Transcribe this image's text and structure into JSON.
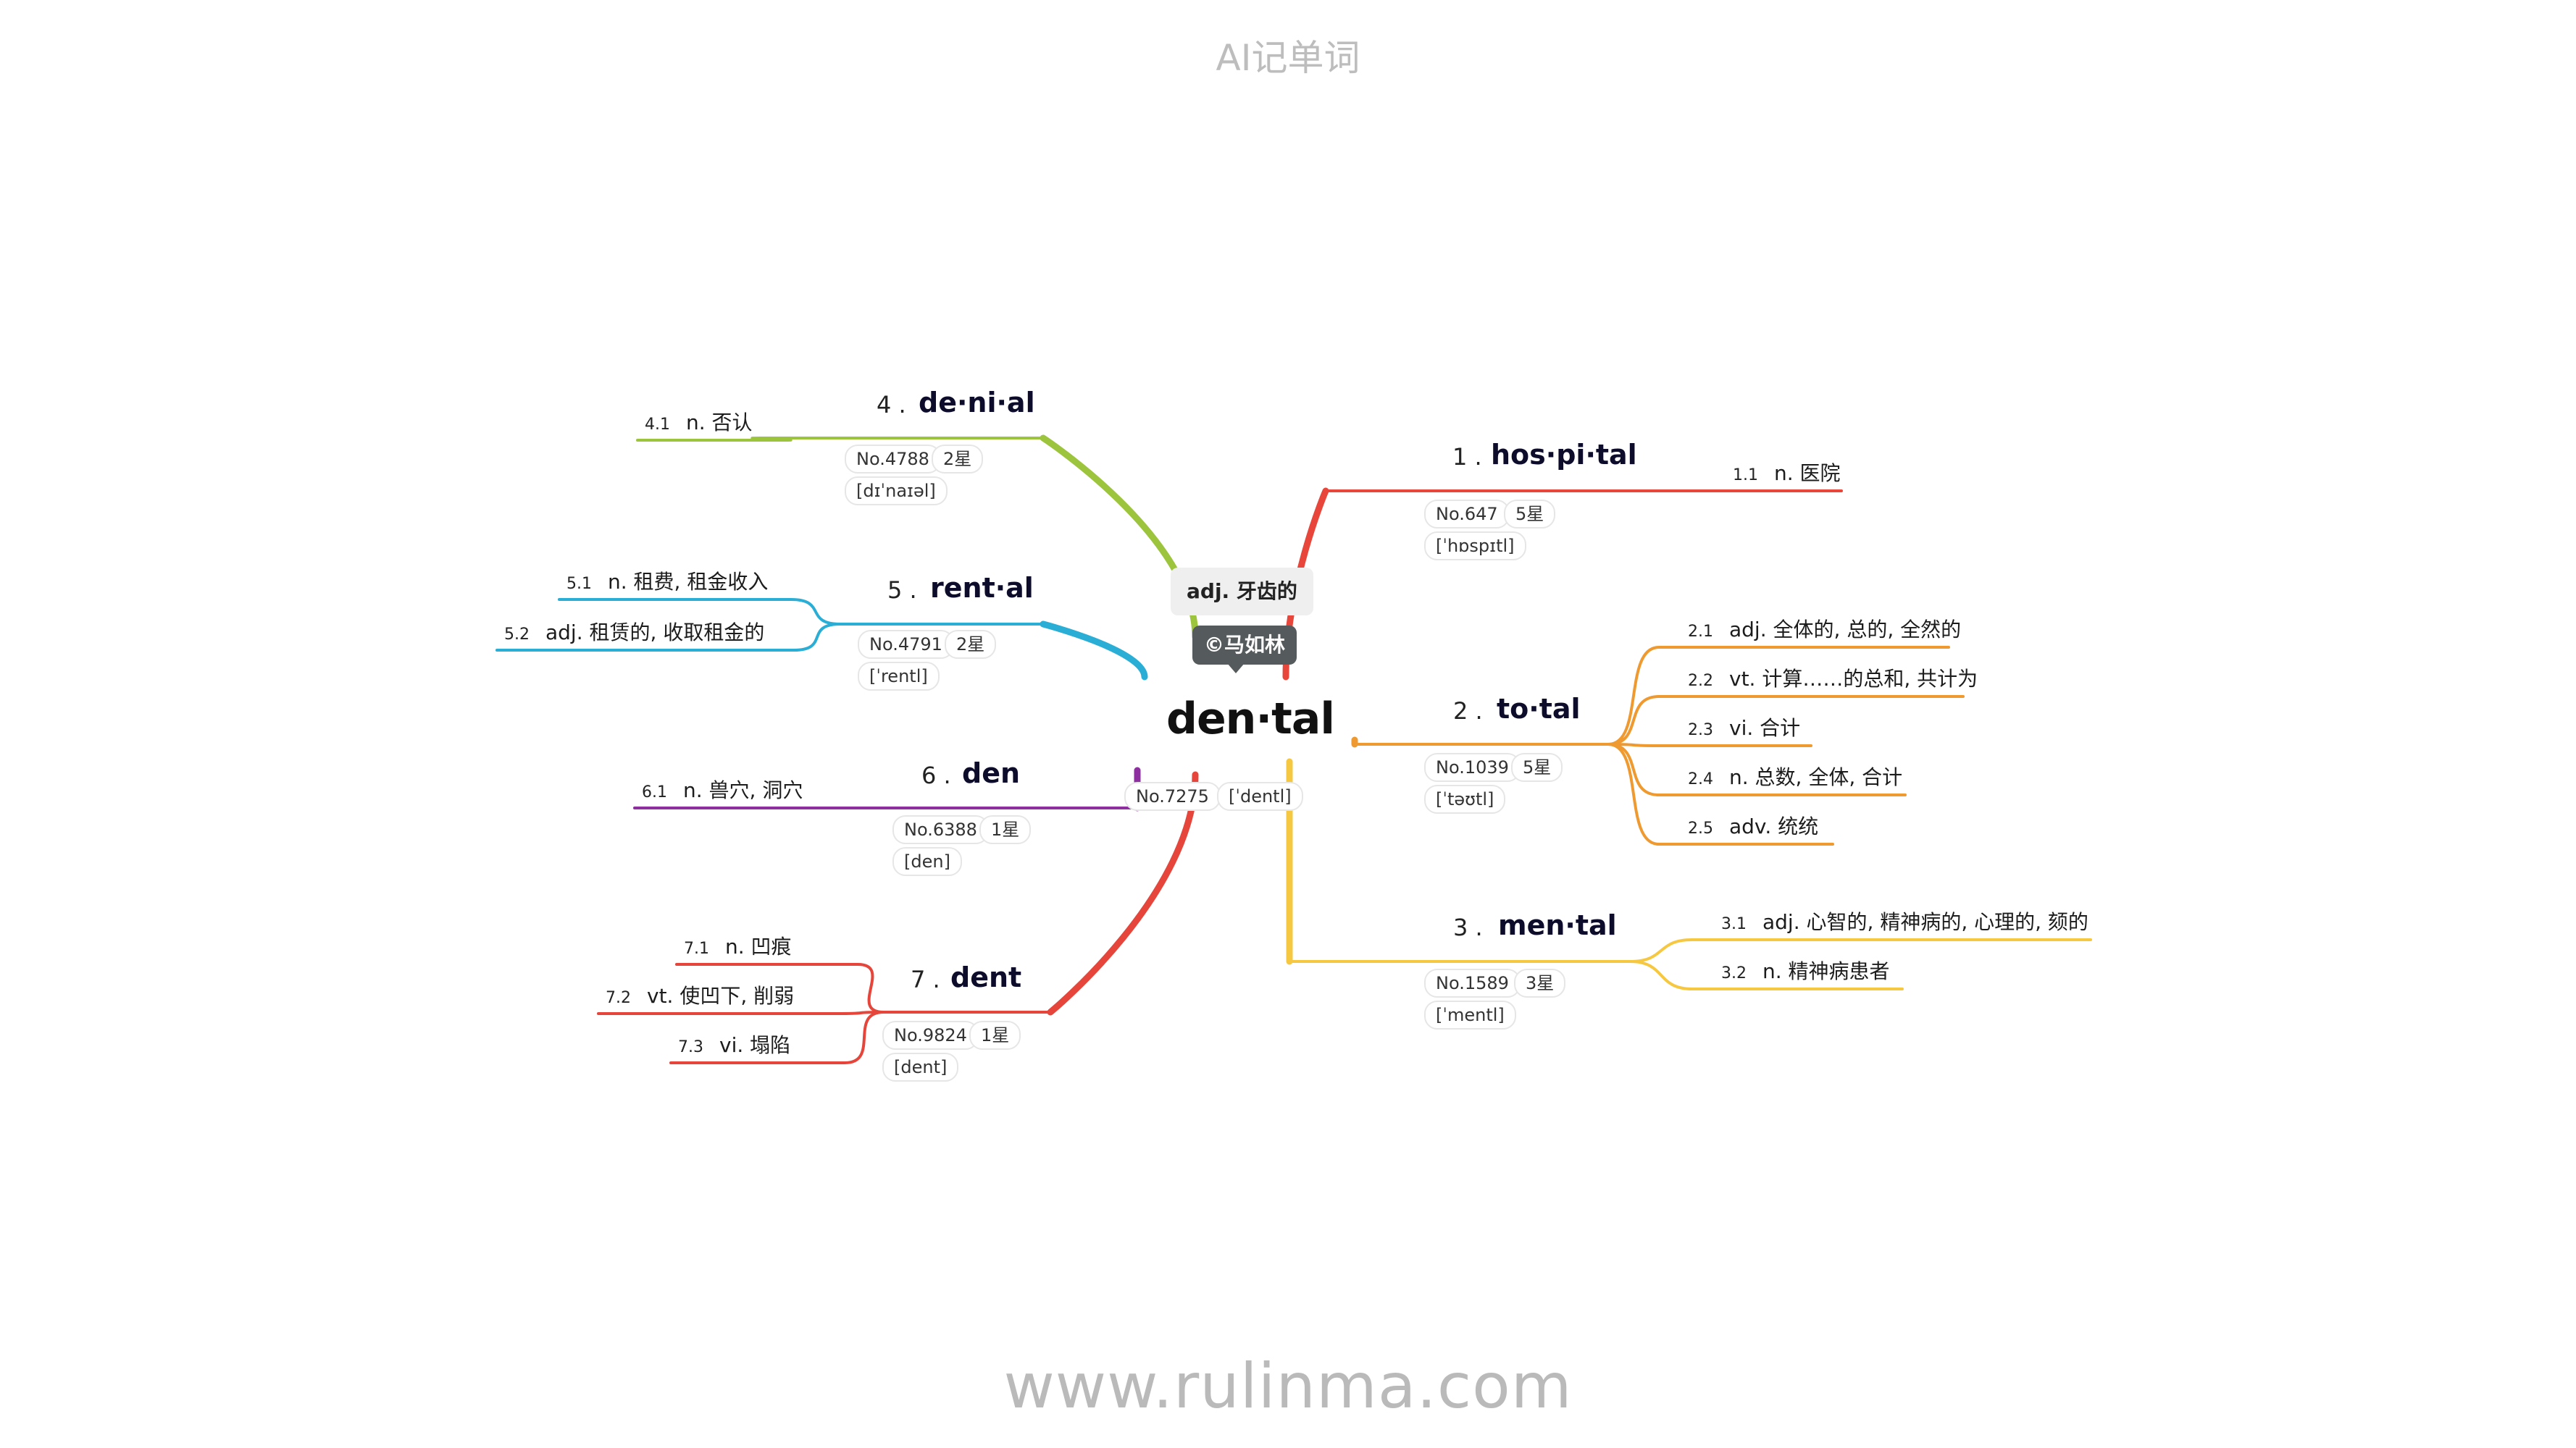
{
  "header": {
    "title": "AI记单词"
  },
  "footer": {
    "url": "www.rulinma.com"
  },
  "central": {
    "word": "den·tal",
    "meaning": "adj. 牙齿的",
    "copyright": "©马如林",
    "no": "No.7275",
    "phonetic": "[ˈdentl]"
  },
  "colors": {
    "hospital": "#e8463a",
    "total": "#ef9a30",
    "mental": "#f6c842",
    "denial": "#9dc43d",
    "rental": "#2aaed5",
    "den": "#8e2fa0",
    "dent": "#e5453a"
  },
  "branches": [
    {
      "id": "hospital",
      "num": "1",
      "word": "hos·pi·tal",
      "no": "No.647",
      "stars": "5星",
      "phonetic": "[ˈhɒspɪtl]",
      "defs": [
        {
          "idx": "1.1",
          "text": "n. 医院"
        }
      ]
    },
    {
      "id": "total",
      "num": "2",
      "word": "to·tal",
      "no": "No.1039",
      "stars": "5星",
      "phonetic": "[ˈtəʊtl]",
      "defs": [
        {
          "idx": "2.1",
          "text": "adj. 全体的, 总的, 全然的"
        },
        {
          "idx": "2.2",
          "text": "vt. 计算……的总和, 共计为"
        },
        {
          "idx": "2.3",
          "text": "vi. 合计"
        },
        {
          "idx": "2.4",
          "text": "n. 总数, 全体, 合计"
        },
        {
          "idx": "2.5",
          "text": "adv. 统统"
        }
      ]
    },
    {
      "id": "mental",
      "num": "3",
      "word": "men·tal",
      "no": "No.1589",
      "stars": "3星",
      "phonetic": "[ˈmentl]",
      "defs": [
        {
          "idx": "3.1",
          "text": "adj. 心智的, 精神病的, 心理的, 颏的"
        },
        {
          "idx": "3.2",
          "text": "n. 精神病患者"
        }
      ]
    },
    {
      "id": "denial",
      "num": "4",
      "word": "de·ni·al",
      "no": "No.4788",
      "stars": "2星",
      "phonetic": "[dɪˈnaɪəl]",
      "defs": [
        {
          "idx": "4.1",
          "text": "n. 否认"
        }
      ]
    },
    {
      "id": "rental",
      "num": "5",
      "word": "rent·al",
      "no": "No.4791",
      "stars": "2星",
      "phonetic": "[ˈrentl]",
      "defs": [
        {
          "idx": "5.1",
          "text": "n. 租费, 租金收入"
        },
        {
          "idx": "5.2",
          "text": "adj. 租赁的, 收取租金的"
        }
      ]
    },
    {
      "id": "den",
      "num": "6",
      "word": "den",
      "no": "No.6388",
      "stars": "1星",
      "phonetic": "[den]",
      "defs": [
        {
          "idx": "6.1",
          "text": "n. 兽穴, 洞穴"
        }
      ]
    },
    {
      "id": "dent",
      "num": "7",
      "word": "dent",
      "no": "No.9824",
      "stars": "1星",
      "phonetic": "[dent]",
      "defs": [
        {
          "idx": "7.1",
          "text": "n. 凹痕"
        },
        {
          "idx": "7.2",
          "text": "vt. 使凹下, 削弱"
        },
        {
          "idx": "7.3",
          "text": "vi. 塌陷"
        }
      ]
    }
  ]
}
